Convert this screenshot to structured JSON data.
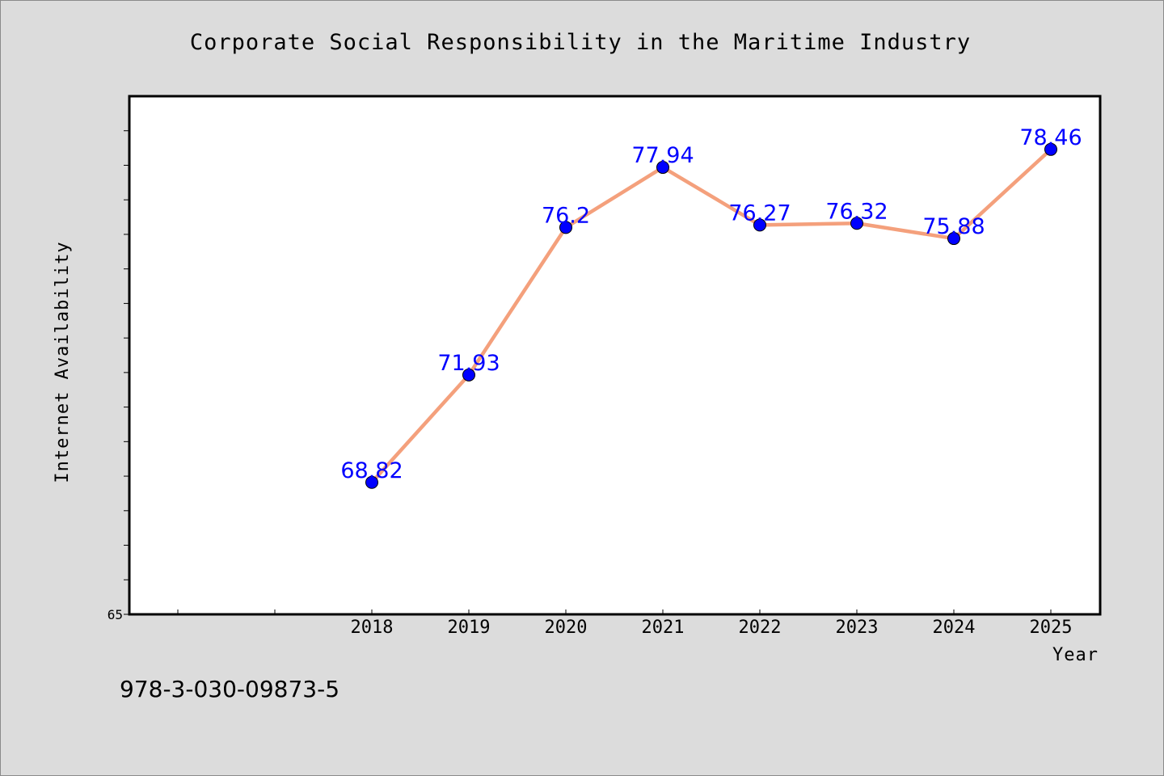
{
  "chart_data": {
    "type": "line",
    "title": "Corporate Social Responsibility in the Maritime Industry",
    "xlabel": "Year",
    "ylabel": "Internet Availability",
    "x": [
      "2018",
      "2019",
      "2020",
      "2021",
      "2022",
      "2023",
      "2024",
      "2025"
    ],
    "series": [
      {
        "values": [
          68.82,
          71.93,
          76.2,
          77.94,
          76.27,
          76.32,
          75.88,
          78.46
        ]
      }
    ],
    "data_labels": [
      "68.82",
      "71.93",
      "76.2",
      "77.94",
      "76.27",
      "76.32",
      "75.88",
      "78.46"
    ],
    "y_min_label": "65",
    "ylim": [
      65,
      80
    ],
    "xlim_slots": [
      2015.5,
      2025.5
    ],
    "grid": false,
    "line_color": "#f4a07c",
    "marker_color": "#0000ff",
    "label_color": "#0000ff"
  },
  "footer": {
    "isbn": "978-3-030-09873-5"
  }
}
